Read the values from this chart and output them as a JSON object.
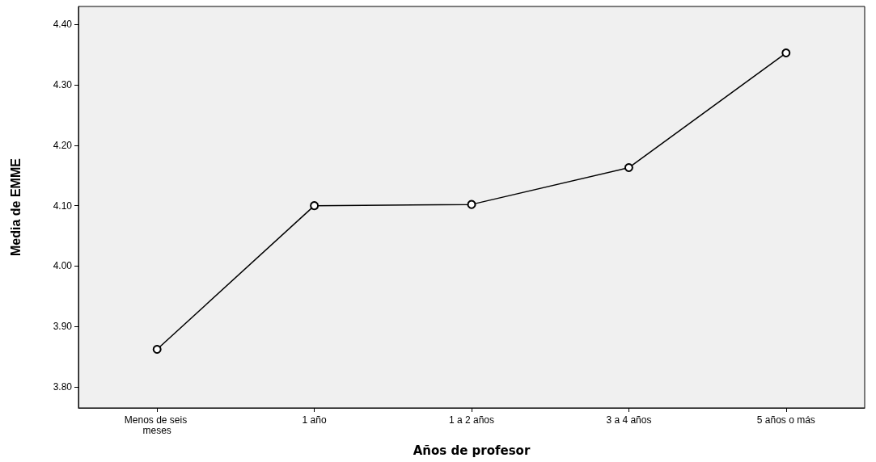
{
  "chart_data": {
    "type": "line",
    "xlabel": "Años de profesor",
    "ylabel": "Media de EMME",
    "categories": [
      "Menos de seis meses",
      "1 año",
      "1 a 2 años",
      "3 a 4 años",
      "5 años o más"
    ],
    "series": [
      {
        "color": "#000000",
        "values": [
          3.862,
          4.1,
          4.102,
          4.163,
          4.353
        ]
      }
    ],
    "ylim": [
      3.765,
      4.43
    ],
    "yticks": [
      {
        "value": 3.8,
        "label": "3.80"
      },
      {
        "value": 3.9,
        "label": "3.90"
      },
      {
        "value": 4.0,
        "label": "4.00"
      },
      {
        "value": 4.1,
        "label": "4.10"
      },
      {
        "value": 4.2,
        "label": "4.20"
      },
      {
        "value": 4.3,
        "label": "4.30"
      },
      {
        "value": 4.4,
        "label": "4.40"
      }
    ],
    "grid": false,
    "marker": "circle",
    "line_style": "solid"
  }
}
